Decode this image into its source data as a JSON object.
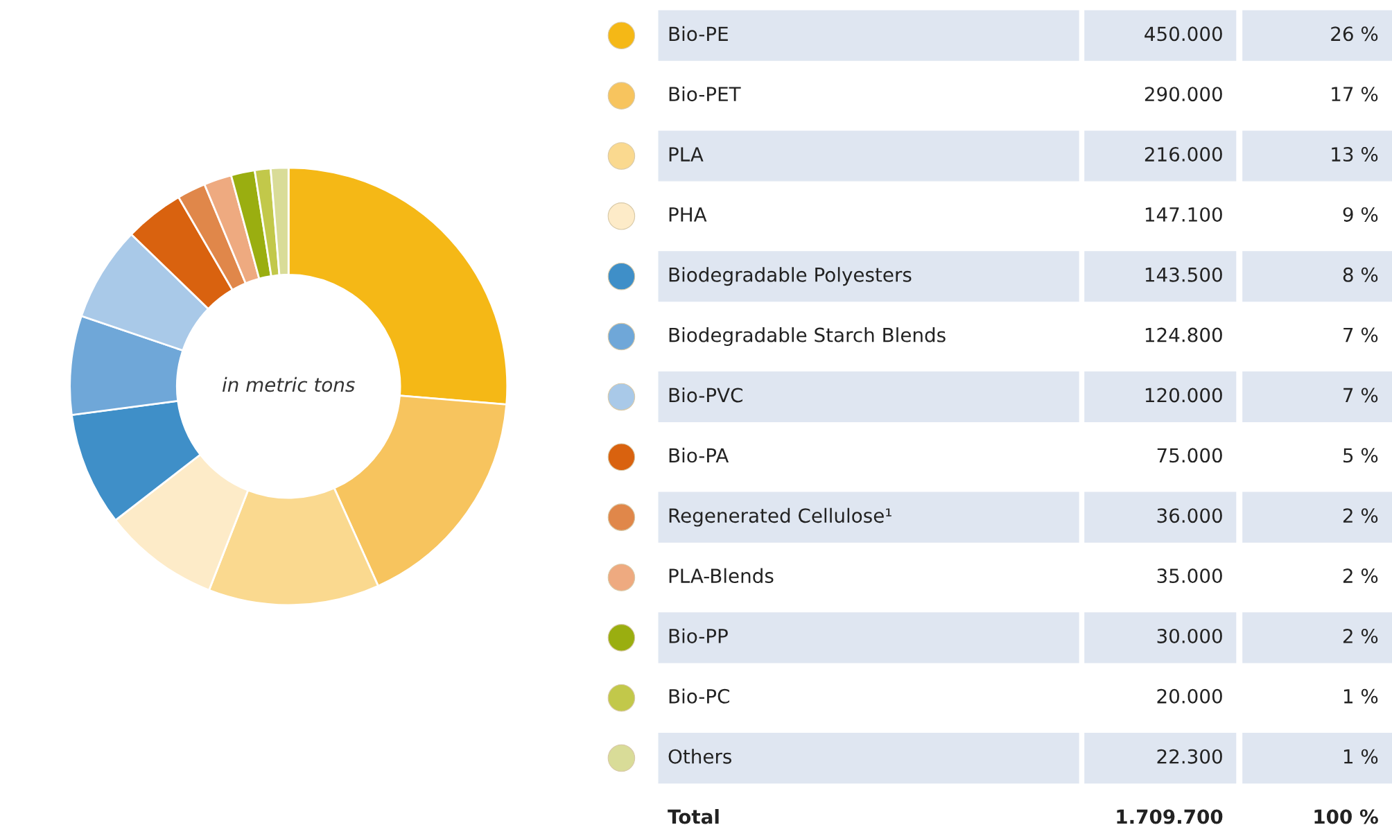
{
  "chart_data": {
    "type": "donut",
    "categories": [
      "Bio-PE",
      "Bio-PET",
      "PLA",
      "PHA",
      "Biodegradable Polyesters",
      "Biodegradable Starch Blends",
      "Bio-PVC",
      "Bio-PA",
      "Regenerated Cellulose¹",
      "PLA-Blends",
      "Bio-PP",
      "Bio-PC",
      "Others"
    ],
    "values": [
      450000,
      290000,
      216000,
      147100,
      143500,
      124800,
      120000,
      75000,
      36000,
      35000,
      30000,
      20000,
      22300
    ],
    "value_labels": [
      "450.000",
      "290.000",
      "216.000",
      "147.100",
      "143.500",
      "124.800",
      "120.000",
      "75.000",
      "36.000",
      "35.000",
      "30.000",
      "20.000",
      "22.300"
    ],
    "colors": [
      "#f5b816",
      "#f7c45e",
      "#fad98f",
      "#fdebc8",
      "#3f8fc8",
      "#6fa7d8",
      "#a9c9e8",
      "#d9620f",
      "#e0874a",
      "#eeaa80",
      "#9aae10",
      "#c2c84a",
      "#d9dc98"
    ],
    "legend": "right",
    "annotations": [
      "in metric tons",
      "26 %",
      "17 %",
      "13 %",
      "9 %",
      "8 %",
      "7 %",
      "7 %",
      "5 %",
      "2 %",
      "2 %",
      "2 %",
      "1 %",
      "1 %",
      "Total",
      "1.709.700",
      "100 %"
    ]
  }
}
